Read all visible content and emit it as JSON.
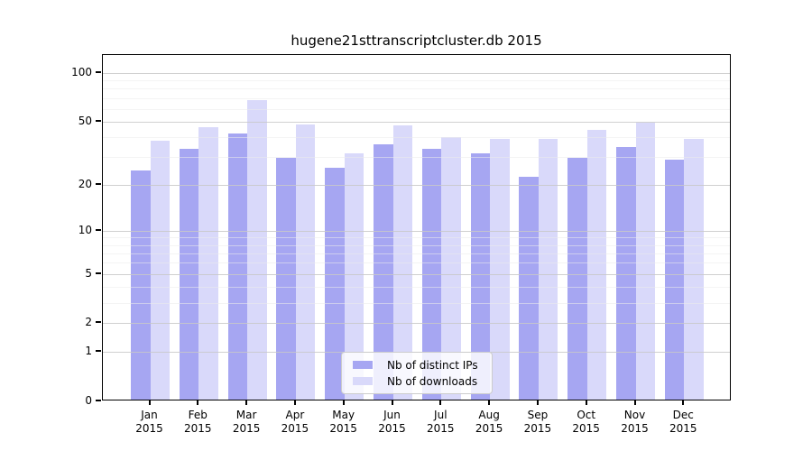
{
  "chart_data": {
    "type": "bar",
    "title": "hugene21sttranscriptcluster.db 2015",
    "xlabel": "",
    "ylabel": "",
    "categories": [
      "Jan 2015",
      "Feb 2015",
      "Mar 2015",
      "Apr 2015",
      "May 2015",
      "Jun 2015",
      "Jul 2015",
      "Aug 2015",
      "Sep 2015",
      "Oct 2015",
      "Nov 2015",
      "Dec 2015"
    ],
    "series": [
      {
        "name": "Nb of distinct IPs",
        "color": "#a6a6f2",
        "values": [
          24,
          33,
          41,
          29,
          25,
          35,
          33,
          31,
          22,
          29,
          34,
          28
        ]
      },
      {
        "name": "Nb of downloads",
        "color": "#d9d9fa",
        "values": [
          37,
          45,
          66,
          47,
          31,
          46,
          39,
          38,
          38,
          43,
          48,
          38
        ]
      }
    ],
    "yscale": "log1p",
    "ylim": [
      0,
      129
    ],
    "yticks": [
      0,
      1,
      2,
      5,
      10,
      20,
      50,
      100
    ],
    "minor_yticks": [
      3,
      4,
      6,
      7,
      8,
      9,
      30,
      40,
      60,
      70,
      80,
      90
    ],
    "grid": "on",
    "legend_position": "bottom-center-inside",
    "colors": {
      "major_grid": "#c8c8c8",
      "minor_grid": "#ebebeb",
      "axis": "#000000",
      "background": "#ffffff"
    }
  }
}
